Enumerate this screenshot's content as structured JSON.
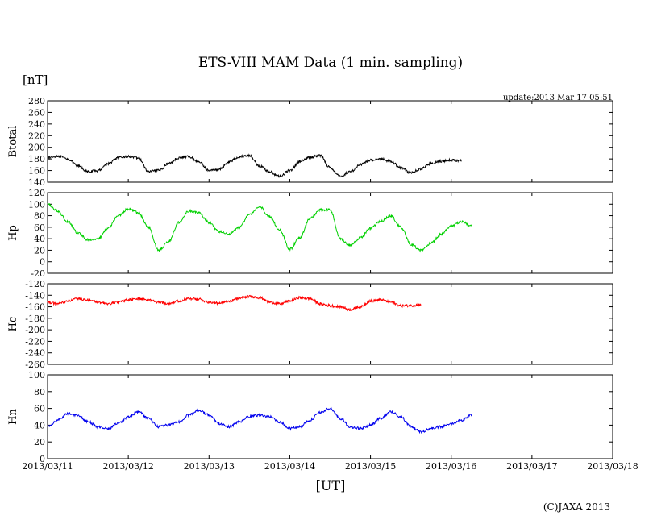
{
  "title": "ETS-VIII MAM Data (1 min. sampling)",
  "unit_label": "[nT]",
  "xlabel": "[UT]",
  "update_text": "update:2013 Mar 17 05:51",
  "copyright": "(C)JAXA 2013",
  "chart_data": [
    {
      "type": "line",
      "ylabel": "Btotal",
      "ylim": [
        140,
        280
      ],
      "yticks": [
        140,
        160,
        180,
        200,
        220,
        240,
        260,
        280
      ],
      "color": "#000000",
      "x_start": "2013/03/11 00:00",
      "x_step_hours": 3,
      "values": [
        182,
        185,
        180,
        168,
        158,
        160,
        172,
        182,
        184,
        182,
        158,
        160,
        172,
        182,
        184,
        175,
        160,
        162,
        175,
        184,
        186,
        168,
        158,
        150,
        160,
        175,
        183,
        186,
        165,
        150,
        158,
        170,
        178,
        180,
        176,
        165,
        156,
        163,
        172,
        176,
        178,
        177
      ]
    },
    {
      "type": "line",
      "ylabel": "Hp",
      "ylim": [
        -20,
        120
      ],
      "yticks": [
        -20,
        0,
        20,
        40,
        60,
        80,
        100,
        120
      ],
      "color": "#00d000",
      "x_start": "2013/03/11 00:00",
      "x_step_hours": 3,
      "values": [
        100,
        88,
        70,
        50,
        38,
        40,
        58,
        80,
        92,
        85,
        60,
        20,
        35,
        68,
        88,
        85,
        68,
        52,
        48,
        60,
        82,
        96,
        78,
        55,
        22,
        42,
        75,
        90,
        90,
        40,
        28,
        42,
        58,
        70,
        80,
        60,
        30,
        20,
        32,
        48,
        62,
        70,
        62
      ]
    },
    {
      "type": "line",
      "ylabel": "Hc",
      "ylim": [
        -260,
        -120
      ],
      "yticks": [
        -260,
        -240,
        -220,
        -200,
        -180,
        -160,
        -140,
        -120
      ],
      "color": "#ff0000",
      "x_start": "2013/03/11 00:00",
      "x_step_hours": 3,
      "values": [
        -152,
        -155,
        -150,
        -146,
        -148,
        -152,
        -155,
        -152,
        -148,
        -146,
        -148,
        -152,
        -154,
        -150,
        -146,
        -147,
        -152,
        -154,
        -150,
        -145,
        -142,
        -144,
        -152,
        -155,
        -150,
        -144,
        -146,
        -155,
        -158,
        -160,
        -165,
        -160,
        -150,
        -148,
        -152,
        -158,
        -158,
        -156
      ]
    },
    {
      "type": "line",
      "ylabel": "Hn",
      "ylim": [
        0,
        100
      ],
      "yticks": [
        0,
        20,
        40,
        60,
        80,
        100
      ],
      "color": "#0000ee",
      "x_start": "2013/03/11 00:00",
      "x_step_hours": 3,
      "values": [
        38,
        46,
        54,
        52,
        44,
        38,
        36,
        42,
        50,
        56,
        48,
        38,
        40,
        44,
        52,
        58,
        52,
        42,
        38,
        44,
        50,
        52,
        50,
        44,
        36,
        38,
        46,
        55,
        60,
        48,
        38,
        36,
        40,
        48,
        56,
        50,
        38,
        32,
        36,
        38,
        42,
        46,
        52
      ]
    }
  ],
  "x_axis": {
    "ticks": [
      "2013/03/11",
      "2013/03/12",
      "2013/03/13",
      "2013/03/14",
      "2013/03/15",
      "2013/03/16",
      "2013/03/17",
      "2013/03/18"
    ]
  }
}
